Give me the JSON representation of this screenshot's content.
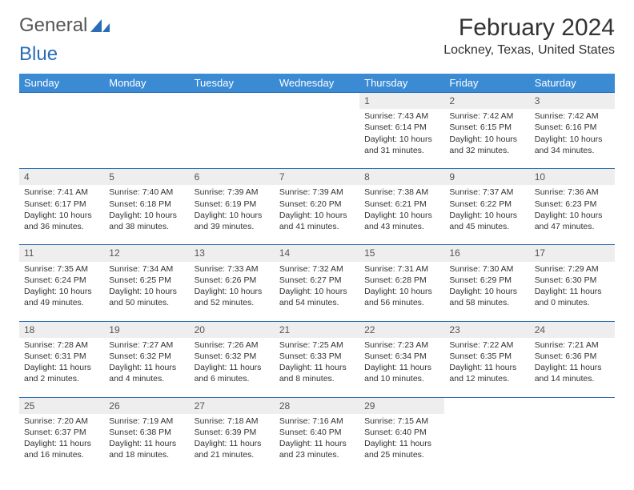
{
  "brand": {
    "word1": "General",
    "word2": "Blue"
  },
  "title": "February 2024",
  "location": "Lockney, Texas, United States",
  "colors": {
    "header_bg": "#3b8bd4",
    "header_text": "#ffffff",
    "daynum_bg": "#eeeeee",
    "rule": "#2a6db5",
    "text": "#333333",
    "brand_gray": "#555555",
    "brand_blue": "#2a6db5"
  },
  "weekdays": [
    "Sunday",
    "Monday",
    "Tuesday",
    "Wednesday",
    "Thursday",
    "Friday",
    "Saturday"
  ],
  "weeks": [
    {
      "days": [
        {
          "n": "",
          "lines": [
            "",
            "",
            "",
            ""
          ]
        },
        {
          "n": "",
          "lines": [
            "",
            "",
            "",
            ""
          ]
        },
        {
          "n": "",
          "lines": [
            "",
            "",
            "",
            ""
          ]
        },
        {
          "n": "",
          "lines": [
            "",
            "",
            "",
            ""
          ]
        },
        {
          "n": "1",
          "lines": [
            "Sunrise: 7:43 AM",
            "Sunset: 6:14 PM",
            "Daylight: 10 hours",
            "and 31 minutes."
          ]
        },
        {
          "n": "2",
          "lines": [
            "Sunrise: 7:42 AM",
            "Sunset: 6:15 PM",
            "Daylight: 10 hours",
            "and 32 minutes."
          ]
        },
        {
          "n": "3",
          "lines": [
            "Sunrise: 7:42 AM",
            "Sunset: 6:16 PM",
            "Daylight: 10 hours",
            "and 34 minutes."
          ]
        }
      ]
    },
    {
      "days": [
        {
          "n": "4",
          "lines": [
            "Sunrise: 7:41 AM",
            "Sunset: 6:17 PM",
            "Daylight: 10 hours",
            "and 36 minutes."
          ]
        },
        {
          "n": "5",
          "lines": [
            "Sunrise: 7:40 AM",
            "Sunset: 6:18 PM",
            "Daylight: 10 hours",
            "and 38 minutes."
          ]
        },
        {
          "n": "6",
          "lines": [
            "Sunrise: 7:39 AM",
            "Sunset: 6:19 PM",
            "Daylight: 10 hours",
            "and 39 minutes."
          ]
        },
        {
          "n": "7",
          "lines": [
            "Sunrise: 7:39 AM",
            "Sunset: 6:20 PM",
            "Daylight: 10 hours",
            "and 41 minutes."
          ]
        },
        {
          "n": "8",
          "lines": [
            "Sunrise: 7:38 AM",
            "Sunset: 6:21 PM",
            "Daylight: 10 hours",
            "and 43 minutes."
          ]
        },
        {
          "n": "9",
          "lines": [
            "Sunrise: 7:37 AM",
            "Sunset: 6:22 PM",
            "Daylight: 10 hours",
            "and 45 minutes."
          ]
        },
        {
          "n": "10",
          "lines": [
            "Sunrise: 7:36 AM",
            "Sunset: 6:23 PM",
            "Daylight: 10 hours",
            "and 47 minutes."
          ]
        }
      ]
    },
    {
      "days": [
        {
          "n": "11",
          "lines": [
            "Sunrise: 7:35 AM",
            "Sunset: 6:24 PM",
            "Daylight: 10 hours",
            "and 49 minutes."
          ]
        },
        {
          "n": "12",
          "lines": [
            "Sunrise: 7:34 AM",
            "Sunset: 6:25 PM",
            "Daylight: 10 hours",
            "and 50 minutes."
          ]
        },
        {
          "n": "13",
          "lines": [
            "Sunrise: 7:33 AM",
            "Sunset: 6:26 PM",
            "Daylight: 10 hours",
            "and 52 minutes."
          ]
        },
        {
          "n": "14",
          "lines": [
            "Sunrise: 7:32 AM",
            "Sunset: 6:27 PM",
            "Daylight: 10 hours",
            "and 54 minutes."
          ]
        },
        {
          "n": "15",
          "lines": [
            "Sunrise: 7:31 AM",
            "Sunset: 6:28 PM",
            "Daylight: 10 hours",
            "and 56 minutes."
          ]
        },
        {
          "n": "16",
          "lines": [
            "Sunrise: 7:30 AM",
            "Sunset: 6:29 PM",
            "Daylight: 10 hours",
            "and 58 minutes."
          ]
        },
        {
          "n": "17",
          "lines": [
            "Sunrise: 7:29 AM",
            "Sunset: 6:30 PM",
            "Daylight: 11 hours",
            "and 0 minutes."
          ]
        }
      ]
    },
    {
      "days": [
        {
          "n": "18",
          "lines": [
            "Sunrise: 7:28 AM",
            "Sunset: 6:31 PM",
            "Daylight: 11 hours",
            "and 2 minutes."
          ]
        },
        {
          "n": "19",
          "lines": [
            "Sunrise: 7:27 AM",
            "Sunset: 6:32 PM",
            "Daylight: 11 hours",
            "and 4 minutes."
          ]
        },
        {
          "n": "20",
          "lines": [
            "Sunrise: 7:26 AM",
            "Sunset: 6:32 PM",
            "Daylight: 11 hours",
            "and 6 minutes."
          ]
        },
        {
          "n": "21",
          "lines": [
            "Sunrise: 7:25 AM",
            "Sunset: 6:33 PM",
            "Daylight: 11 hours",
            "and 8 minutes."
          ]
        },
        {
          "n": "22",
          "lines": [
            "Sunrise: 7:23 AM",
            "Sunset: 6:34 PM",
            "Daylight: 11 hours",
            "and 10 minutes."
          ]
        },
        {
          "n": "23",
          "lines": [
            "Sunrise: 7:22 AM",
            "Sunset: 6:35 PM",
            "Daylight: 11 hours",
            "and 12 minutes."
          ]
        },
        {
          "n": "24",
          "lines": [
            "Sunrise: 7:21 AM",
            "Sunset: 6:36 PM",
            "Daylight: 11 hours",
            "and 14 minutes."
          ]
        }
      ]
    },
    {
      "days": [
        {
          "n": "25",
          "lines": [
            "Sunrise: 7:20 AM",
            "Sunset: 6:37 PM",
            "Daylight: 11 hours",
            "and 16 minutes."
          ]
        },
        {
          "n": "26",
          "lines": [
            "Sunrise: 7:19 AM",
            "Sunset: 6:38 PM",
            "Daylight: 11 hours",
            "and 18 minutes."
          ]
        },
        {
          "n": "27",
          "lines": [
            "Sunrise: 7:18 AM",
            "Sunset: 6:39 PM",
            "Daylight: 11 hours",
            "and 21 minutes."
          ]
        },
        {
          "n": "28",
          "lines": [
            "Sunrise: 7:16 AM",
            "Sunset: 6:40 PM",
            "Daylight: 11 hours",
            "and 23 minutes."
          ]
        },
        {
          "n": "29",
          "lines": [
            "Sunrise: 7:15 AM",
            "Sunset: 6:40 PM",
            "Daylight: 11 hours",
            "and 25 minutes."
          ]
        },
        {
          "n": "",
          "lines": [
            "",
            "",
            "",
            ""
          ]
        },
        {
          "n": "",
          "lines": [
            "",
            "",
            "",
            ""
          ]
        }
      ]
    }
  ]
}
